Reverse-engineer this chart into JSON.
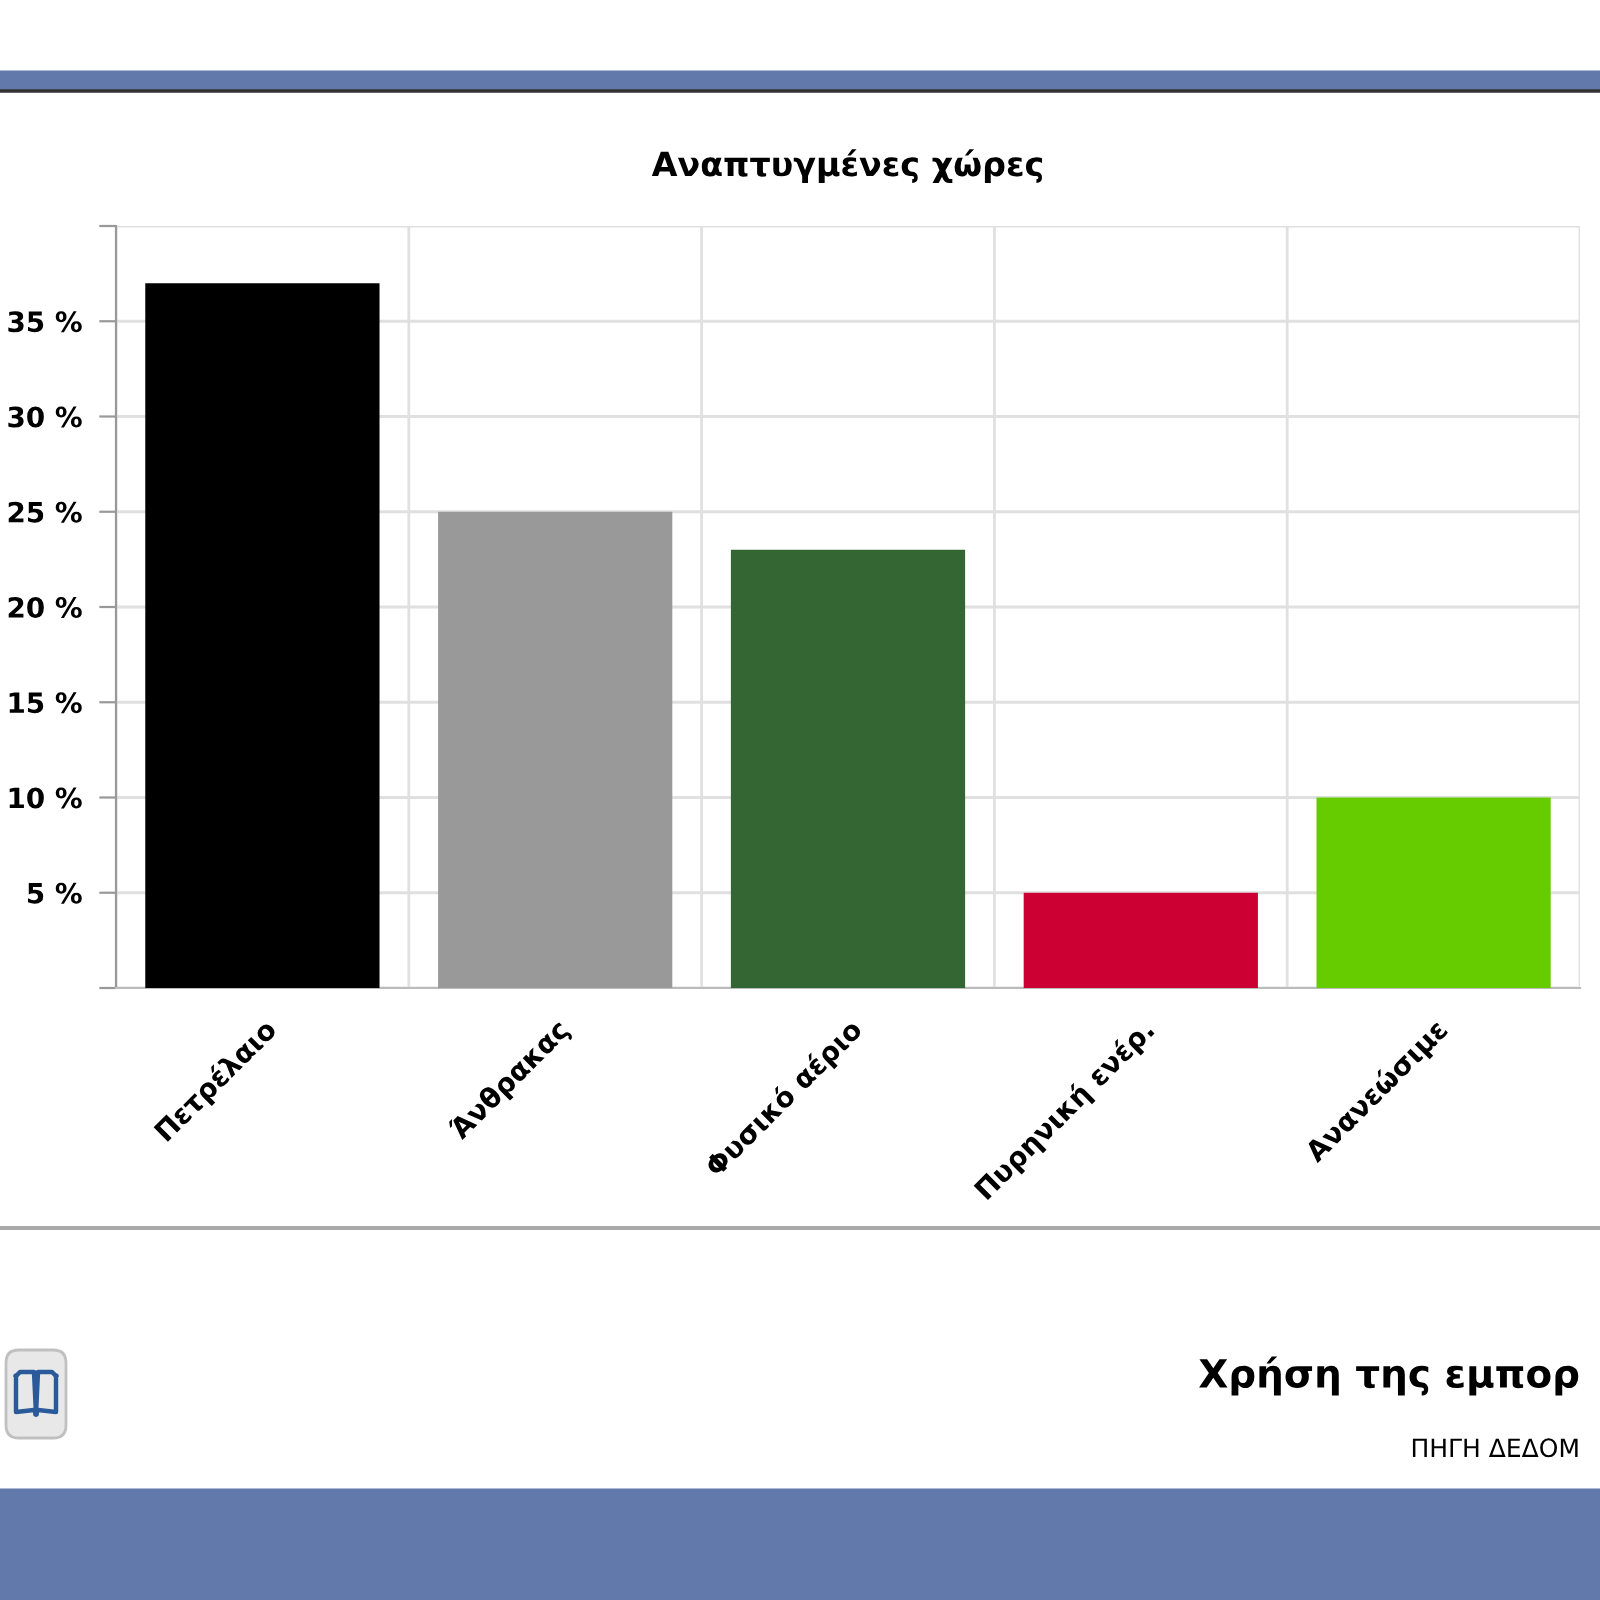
{
  "chart_data": {
    "type": "bar",
    "title": "Αναπτυγμένες χώρες",
    "categories": [
      "Πετρέλαιο",
      "Άνθρακας",
      "Φυσικό αέριο",
      "Πυρηνική ενέρ.",
      "Ανανεώσιμε"
    ],
    "values": [
      37,
      25,
      23,
      5,
      10
    ],
    "colors": [
      "#000000",
      "#999999",
      "#336633",
      "#cc0033",
      "#66cc00"
    ],
    "ylim": [
      0,
      40
    ],
    "yticks": [
      {
        "value": 0,
        "label": null
      },
      {
        "value": 5,
        "label": "5 %"
      },
      {
        "value": 10,
        "label": "10 %"
      },
      {
        "value": 15,
        "label": "15 %"
      },
      {
        "value": 20,
        "label": "20 %"
      },
      {
        "value": 25,
        "label": "25 %"
      },
      {
        "value": 30,
        "label": "30 %"
      },
      {
        "value": 35,
        "label": "35 %"
      },
      {
        "value": 40,
        "label": null
      }
    ],
    "grid": true,
    "annotations": [
      "Χρήση της εμπορ",
      "ΠΗΓΗ ΔΕΔΟΜ"
    ]
  }
}
